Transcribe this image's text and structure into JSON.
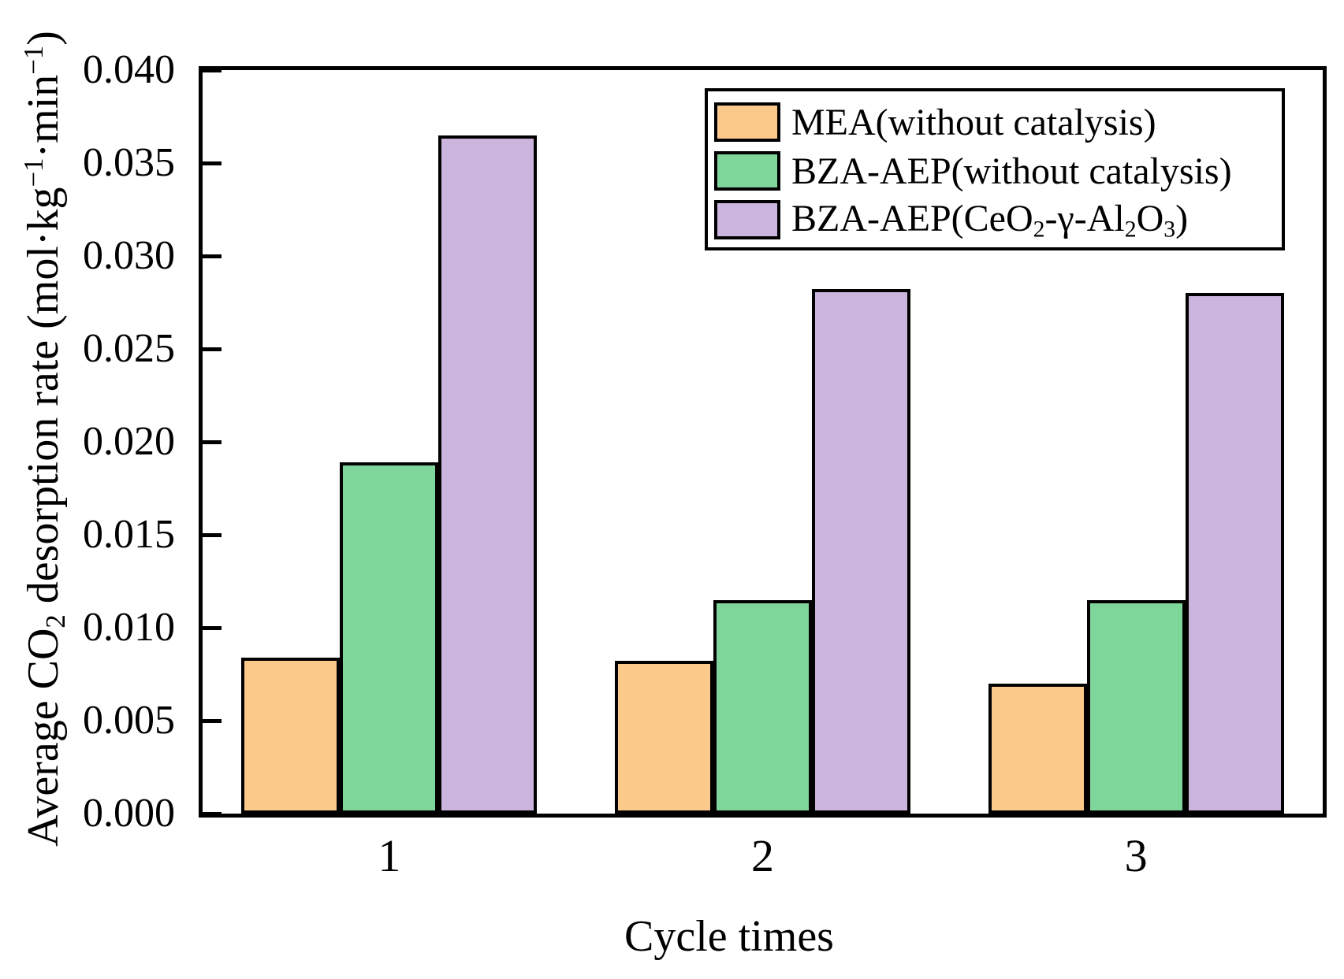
{
  "figure": {
    "background": "#FFFFFF",
    "axis_color": "#000000"
  },
  "chart_data": {
    "type": "bar",
    "title": "",
    "categories": [
      "1",
      "2",
      "3"
    ],
    "series": [
      {
        "name": "MEA(without catalysis)",
        "color": "#FBCA8A",
        "values": [
          0.0084,
          0.0082,
          0.007
        ],
        "label_rich": [
          {
            "t": "MEA(without catalysis)"
          }
        ]
      },
      {
        "name": "BZA-AEP(without catalysis)",
        "color": "#7ED69B",
        "values": [
          0.0189,
          0.0115,
          0.0115
        ],
        "label_rich": [
          {
            "t": "BZA-AEP(without catalysis)"
          }
        ]
      },
      {
        "name": "BZA-AEP(CeO2-γ-Al2O3)",
        "color": "#CBB5DC",
        "values": [
          0.0365,
          0.0282,
          0.028
        ],
        "label_rich": [
          {
            "t": "BZA-AEP(CeO"
          },
          {
            "t": "2",
            "s": "sub"
          },
          {
            "t": "-γ-Al"
          },
          {
            "t": "2",
            "s": "sub"
          },
          {
            "t": "O"
          },
          {
            "t": "3",
            "s": "sub"
          },
          {
            "t": ")"
          }
        ]
      }
    ],
    "xlabel": "Cycle times",
    "ylabel": "Average CO2 desorption rate (mol·kg−1·min−1)",
    "ylabel_rich": [
      {
        "t": "Average CO"
      },
      {
        "t": "2",
        "s": "sub"
      },
      {
        "t": " desorption rate (mol·kg"
      },
      {
        "t": "−1",
        "s": "sup"
      },
      {
        "t": "·min"
      },
      {
        "t": "−1",
        "s": "sup"
      },
      {
        "t": ")"
      }
    ],
    "ylim": [
      0,
      0.04
    ],
    "ytick_step": 0.005,
    "yticks_top_to_bottom": [
      "0.040",
      "0.035",
      "0.030",
      "0.025",
      "0.020",
      "0.015",
      "0.010",
      "0.005",
      "0.000"
    ],
    "grid": false,
    "legend_position": "top-right",
    "bar_border_color": "#000000"
  }
}
